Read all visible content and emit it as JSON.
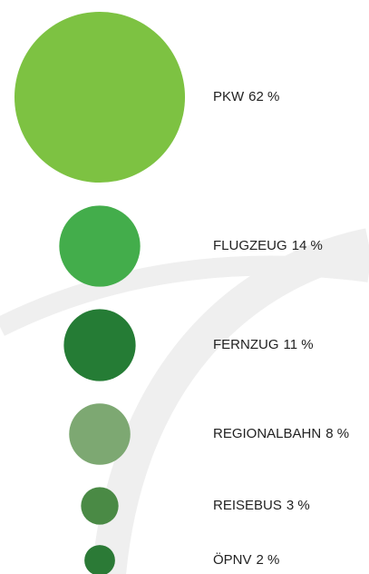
{
  "chart_data": {
    "type": "bubble",
    "categories": [
      "PKW",
      "FLUGZEUG",
      "FERNZUG",
      "REGIONALBAHN",
      "REISEBUS",
      "ÖPNV"
    ],
    "values": [
      62,
      14,
      11,
      8,
      3,
      2
    ],
    "value_labels": [
      "62 %",
      "14 %",
      "11 %",
      "8 %",
      "3 %",
      "2 %"
    ],
    "colors": [
      "#7dc242",
      "#43ad4b",
      "#257c35",
      "#7da872",
      "#4a8a45",
      "#2b7a36"
    ]
  }
}
